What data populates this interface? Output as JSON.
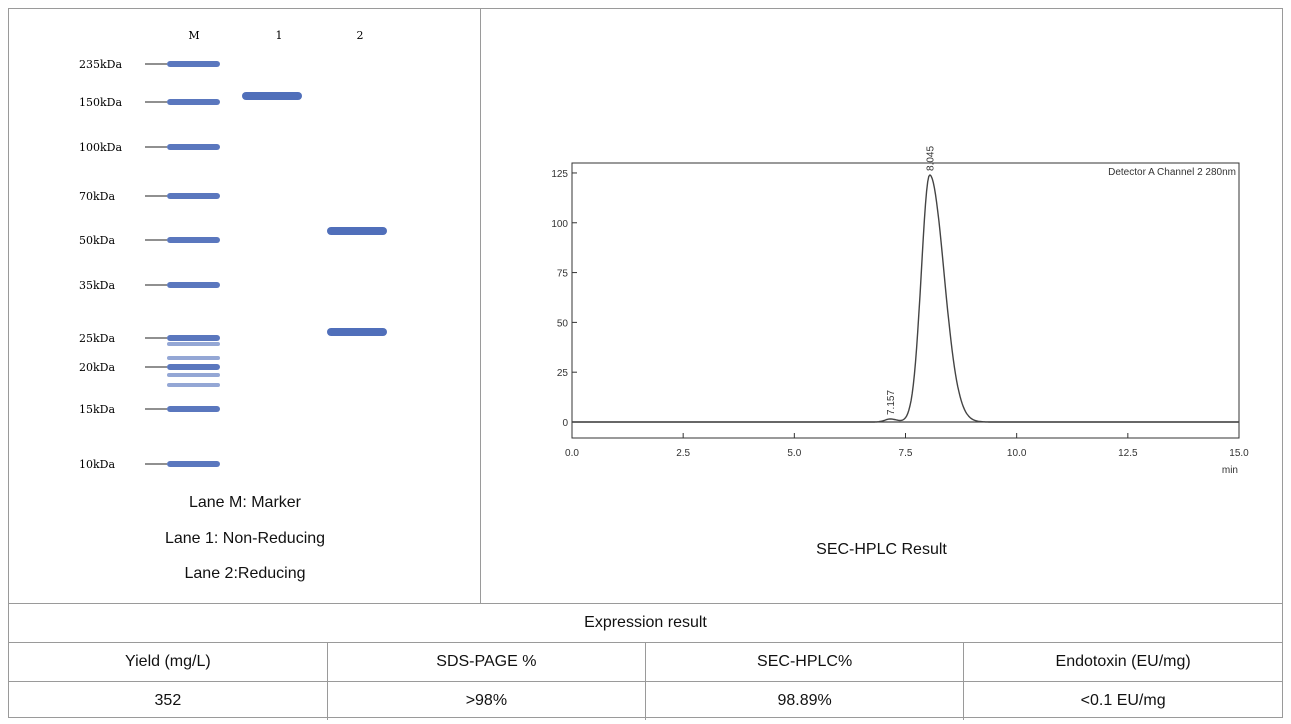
{
  "gel": {
    "lane_labels": [
      "M",
      "1",
      "2"
    ],
    "markers": [
      "235kDa",
      "150kDa",
      "100kDa",
      "70kDa",
      "50kDa",
      "35kDa",
      "25kDa",
      "20kDa",
      "15kDa",
      "10kDa"
    ],
    "band_color": "#3d5fb3",
    "captions": [
      "Lane M: Marker",
      "Lane 1: Non-Reducing",
      "Lane 2:Reducing"
    ]
  },
  "chart_data": {
    "type": "line",
    "title": "",
    "legend_text": "Detector A Channel 2 280nm",
    "xlabel": "min",
    "ylabel": "",
    "xlim": [
      0,
      15
    ],
    "ylim": [
      0,
      130
    ],
    "x_ticks": [
      "0.0",
      "2.5",
      "5.0",
      "7.5",
      "10.0",
      "12.5",
      "15.0"
    ],
    "y_ticks": [
      "0",
      "25",
      "50",
      "75",
      "100",
      "125"
    ],
    "peaks": [
      {
        "label": "7.157",
        "x": 7.157,
        "y": 1.5
      },
      {
        "label": "8.045",
        "x": 8.045,
        "y": 124
      }
    ],
    "caption": "SEC-HPLC Result"
  },
  "table": {
    "title": "Expression result",
    "headers": [
      "Yield (mg/L)",
      "SDS-PAGE %",
      "SEC-HPLC%",
      "Endotoxin (EU/mg)"
    ],
    "values": [
      "352",
      ">98%",
      "98.89%",
      "<0.1 EU/mg"
    ]
  }
}
